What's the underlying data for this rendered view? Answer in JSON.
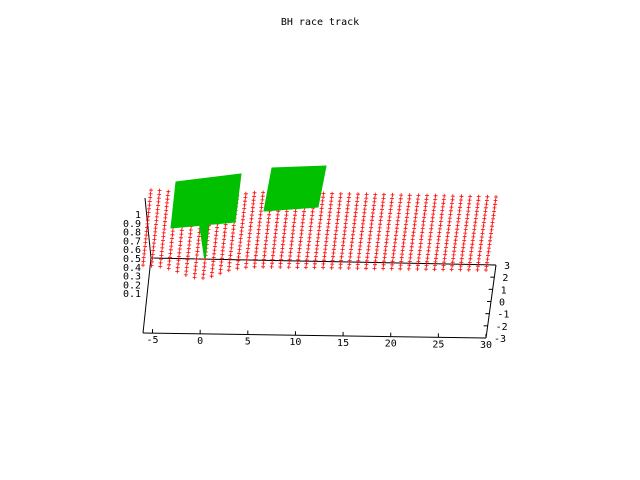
{
  "chart_data": {
    "type": "surface",
    "title": "BH race track",
    "x_ticks": [
      -5,
      0,
      5,
      10,
      15,
      20,
      25,
      30
    ],
    "y_ticks": [
      -3,
      -2,
      -1,
      0,
      1,
      2,
      3
    ],
    "z_ticks": [
      0.1,
      0.2,
      0.3,
      0.4,
      0.5,
      0.6,
      0.7,
      0.8,
      0.9,
      1
    ],
    "x_range": [
      -6,
      30
    ],
    "y_range": [
      -3,
      3
    ],
    "z_range": [
      0,
      1
    ],
    "grid": false,
    "legend": "none",
    "surfaces": [
      {
        "color": "#ff0000",
        "style": "points",
        "description_x_extent": [
          -6,
          30
        ],
        "description_y_extent": [
          -3,
          3
        ],
        "description_z_level": 1
      },
      {
        "color": "#00c000",
        "style": "filled patches",
        "patches": [
          {
            "x_range": [
              -3,
              4
            ],
            "y_range": [
              -3,
              3
            ]
          },
          {
            "x_range": [
              7,
              13
            ],
            "y_range": [
              -3,
              3
            ]
          }
        ]
      }
    ]
  }
}
